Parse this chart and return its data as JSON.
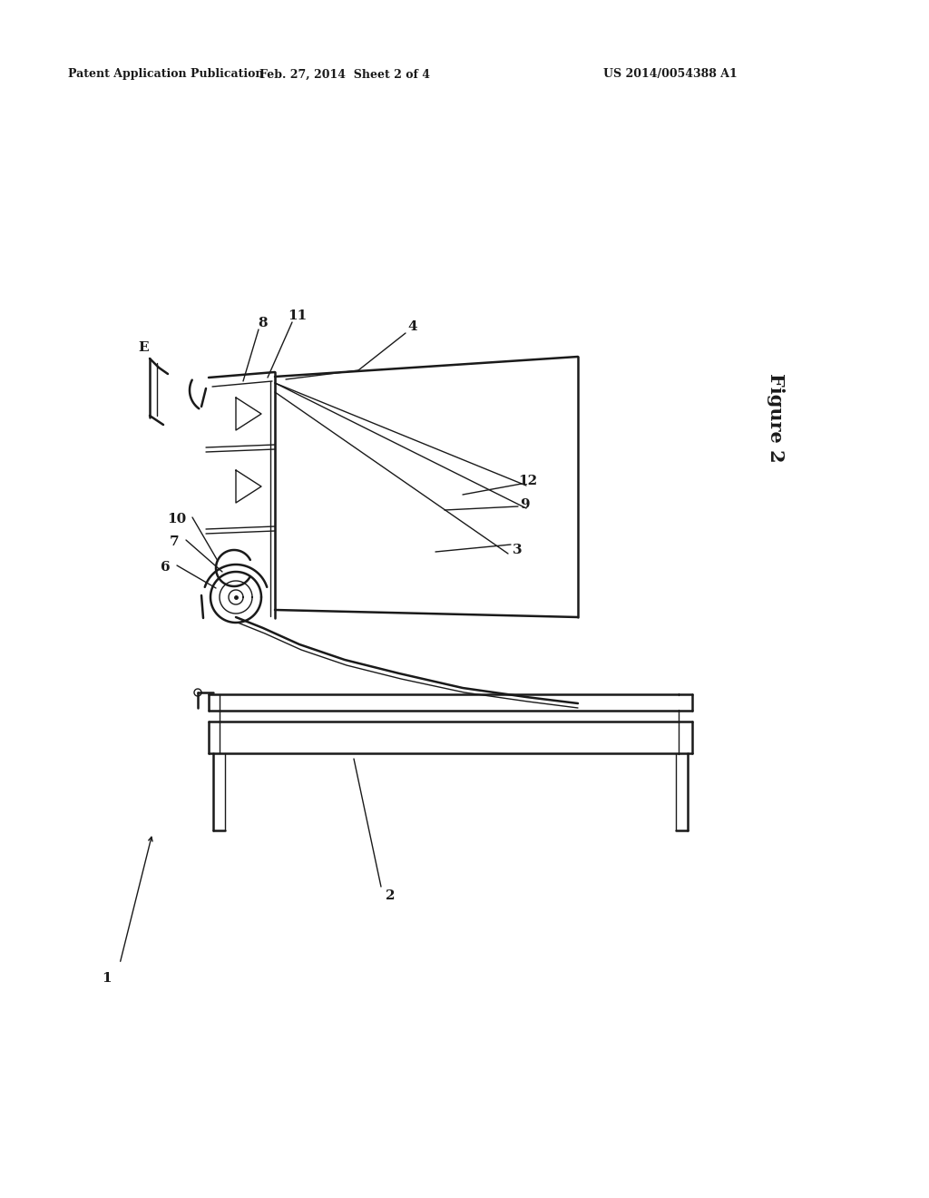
{
  "background_color": "#ffffff",
  "header_left": "Patent Application Publication",
  "header_center": "Feb. 27, 2014  Sheet 2 of 4",
  "header_right": "US 2014/0054388 A1",
  "figure_label": "Figure 2",
  "line_color": "#1a1a1a",
  "lw_main": 1.8,
  "lw_thin": 1.0,
  "label_fontsize": 11
}
